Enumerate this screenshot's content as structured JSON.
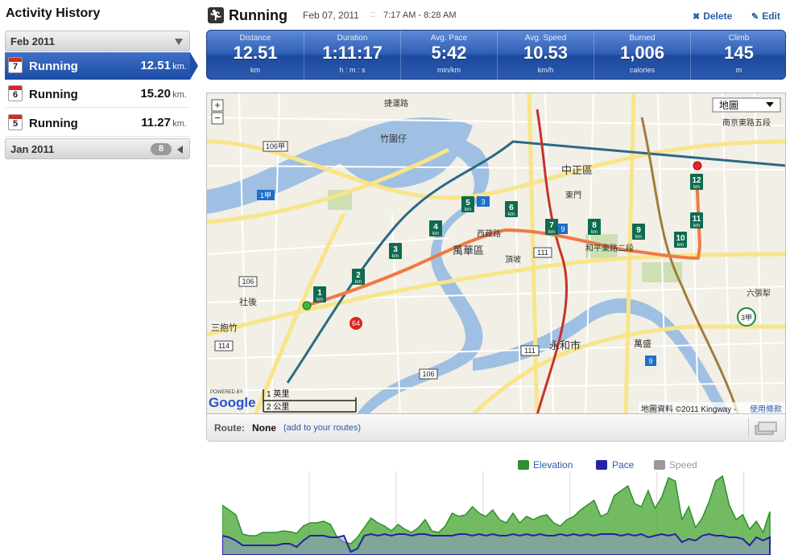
{
  "sidebar": {
    "title": "Activity History",
    "months": [
      {
        "label": "Feb 2011",
        "expanded": true,
        "activities": [
          {
            "day": "7",
            "name": "Running",
            "distance": "12.51",
            "unit": "km.",
            "selected": true
          },
          {
            "day": "6",
            "name": "Running",
            "distance": "15.20",
            "unit": "km.",
            "selected": false
          },
          {
            "day": "5",
            "name": "Running",
            "distance": "11.27",
            "unit": "km.",
            "selected": false
          }
        ]
      },
      {
        "label": "Jan 2011",
        "expanded": false,
        "count": "8"
      }
    ]
  },
  "header": {
    "icon": "running-person-icon",
    "title": "Running",
    "date": "Feb 07, 2011",
    "separator": "::",
    "time": "7:17 AM - 8:28 AM",
    "delete_label": "Delete",
    "edit_label": "Edit"
  },
  "stats": [
    {
      "label": "Distance",
      "value": "12.51",
      "unit": "km"
    },
    {
      "label": "Duration",
      "value": "1:11:17",
      "unit": "h : m : s"
    },
    {
      "label": "Avg. Pace",
      "value": "5:42",
      "unit": "min/km"
    },
    {
      "label": "Avg. Speed",
      "value": "10.53",
      "unit": "km/h"
    },
    {
      "label": "Burned",
      "value": "1,006",
      "unit": "calories"
    },
    {
      "label": "Climb",
      "value": "145",
      "unit": "m"
    }
  ],
  "map": {
    "type_selector": "地圖",
    "zoom_in": "+",
    "zoom_out": "−",
    "scale_miles": "1 英里",
    "scale_km": "2 公里",
    "powered_by": "POWERED BY",
    "google": "Google",
    "attribution": "地圖資料 ©2011 Kingway - ",
    "terms_link": "使用條款",
    "km_markers": [
      "1",
      "2",
      "3",
      "4",
      "5",
      "6",
      "7",
      "8",
      "9",
      "10",
      "11",
      "12"
    ],
    "km_suffix": "km",
    "district_labels": [
      "萬華區",
      "中正區",
      "永和市",
      "竹圍仔",
      "社後",
      "三抱竹",
      "萬盛",
      "六張犁",
      "頂坡",
      "東門",
      "西藏路",
      "和平東路二段",
      "捷運路",
      "南京東路五段"
    ],
    "road_shields": [
      "106",
      "106",
      "111",
      "111",
      "106甲",
      "114",
      "64",
      "1甲",
      "3",
      "9",
      "9",
      "3甲"
    ],
    "colors": {
      "route": "#f07a43",
      "water": "#9fc0e3",
      "land": "#f2efe6",
      "major_road": "#f8e58a",
      "park": "#cde0b4"
    }
  },
  "route": {
    "label": "Route:",
    "value": "None",
    "link": "(add to your routes)"
  },
  "legend": [
    {
      "label": "Elevation",
      "color": "#2f8f2f"
    },
    {
      "label": "Pace",
      "color": "#2323a8"
    },
    {
      "label": "Speed",
      "color": "#999999"
    }
  ],
  "chart_data": {
    "type": "area",
    "series": [
      {
        "name": "Elevation",
        "values": [
          62,
          56,
          50,
          26,
          24,
          24,
          28,
          28,
          28,
          30,
          29,
          27,
          36,
          40,
          40,
          42,
          38,
          22,
          16,
          14,
          22,
          34,
          46,
          40,
          36,
          30,
          38,
          32,
          28,
          34,
          44,
          30,
          28,
          36,
          52,
          48,
          50,
          60,
          52,
          48,
          56,
          44,
          40,
          52,
          40,
          48,
          44,
          48,
          50,
          40,
          36,
          44,
          48,
          56,
          62,
          68,
          48,
          52,
          74,
          80,
          86,
          64,
          60,
          80,
          58,
          72,
          96,
          92,
          44,
          60,
          34,
          46,
          66,
          92,
          98,
          62,
          44,
          50,
          32,
          42,
          28,
          54
        ]
      },
      {
        "name": "Pace",
        "values": [
          24,
          22,
          18,
          12,
          12,
          12,
          12,
          12,
          12,
          14,
          14,
          10,
          18,
          24,
          24,
          24,
          22,
          22,
          24,
          4,
          8,
          24,
          26,
          24,
          26,
          24,
          26,
          26,
          24,
          26,
          26,
          24,
          24,
          24,
          24,
          26,
          26,
          24,
          26,
          24,
          26,
          24,
          24,
          26,
          24,
          26,
          24,
          26,
          24,
          24,
          26,
          24,
          26,
          24,
          26,
          24,
          26,
          26,
          26,
          24,
          26,
          24,
          26,
          22,
          24,
          26,
          24,
          26,
          16,
          20,
          18,
          24,
          26,
          24,
          24,
          22,
          22,
          20,
          12,
          22,
          18,
          22
        ]
      }
    ]
  }
}
